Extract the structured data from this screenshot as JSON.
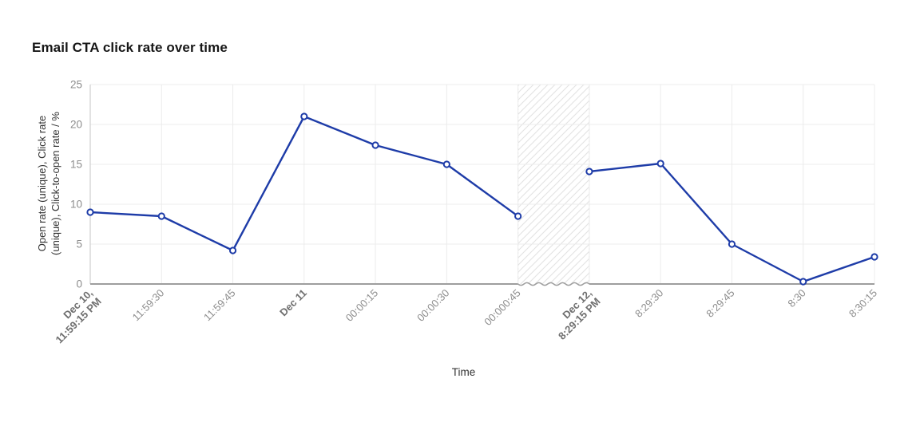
{
  "title": "Email CTA click rate over time",
  "axes": {
    "x_title": "Time",
    "y_title_lines": [
      "Open rate (unique), Click rate",
      "(unique), Click-to-open rate / %"
    ]
  },
  "chart_data": {
    "type": "line",
    "title": "Email CTA click rate over time",
    "xlabel": "Time",
    "ylabel": "Open rate (unique), Click rate (unique), Click-to-open rate / %",
    "ylim": [
      0,
      25
    ],
    "y_ticks": [
      0,
      5,
      10,
      15,
      20,
      25
    ],
    "grid": true,
    "legend": "none",
    "x_tick_labels": [
      {
        "lines": [
          "Dec 10,",
          "11:59:15 PM"
        ],
        "bold": true
      },
      {
        "lines": [
          "11:59:30"
        ],
        "bold": false
      },
      {
        "lines": [
          "11:59:45"
        ],
        "bold": false
      },
      {
        "lines": [
          "Dec 11"
        ],
        "bold": true
      },
      {
        "lines": [
          "00:00:15"
        ],
        "bold": false
      },
      {
        "lines": [
          "00:00:30"
        ],
        "bold": false
      },
      {
        "lines": [
          "00:000:45"
        ],
        "bold": false
      },
      {
        "lines": [
          "Dec 12,",
          "8:29:15 PM"
        ],
        "bold": true
      },
      {
        "lines": [
          "8:29:30"
        ],
        "bold": false
      },
      {
        "lines": [
          "8:29:45"
        ],
        "bold": false
      },
      {
        "lines": [
          "8:30"
        ],
        "bold": false
      },
      {
        "lines": [
          "8:30:15"
        ],
        "bold": false
      }
    ],
    "series": [
      {
        "name": "Email CTA click rate",
        "values": [
          9,
          8.5,
          4.2,
          21,
          17.4,
          15,
          8.5,
          14.1,
          15.1,
          5,
          0.3,
          3.4
        ]
      }
    ],
    "gap": {
      "after_index": 6,
      "style": "hatched-time-break"
    },
    "colors": {
      "line": "#1e3ca8",
      "marker_fill": "#ffffff",
      "grid": "#ececec",
      "axis": "#9e9e9e",
      "left_axis": "#c6c6c6",
      "tick_label": "#8d8d8d",
      "bold_tick_label": "#6f6f6f",
      "hatch": "#e3e3e3",
      "break_edge": "#d0d0d0",
      "title": "#161616"
    }
  }
}
